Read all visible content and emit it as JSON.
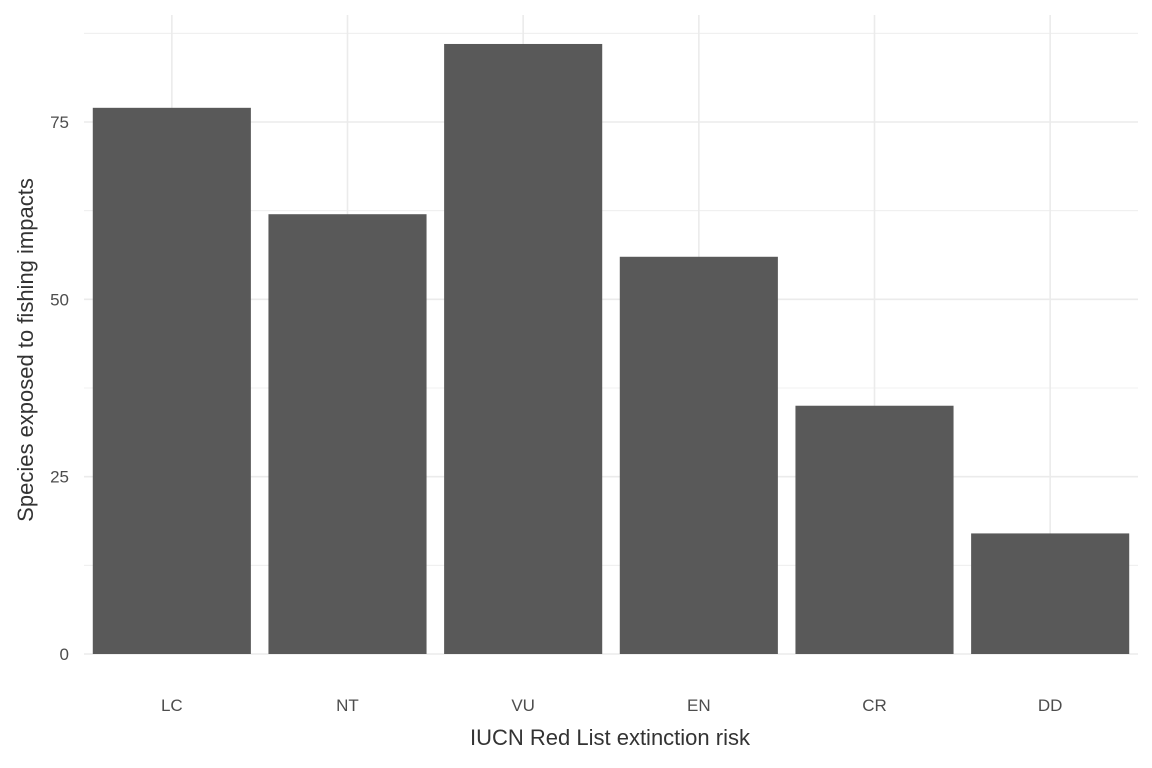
{
  "chart_data": {
    "type": "bar",
    "title": "",
    "xlabel": "IUCN Red List extinction risk",
    "ylabel": "Species exposed to fishing impacts",
    "categories": [
      "LC",
      "NT",
      "VU",
      "EN",
      "CR",
      "DD"
    ],
    "values": [
      77,
      62,
      86,
      56,
      35,
      17
    ],
    "ylim": [
      0,
      90
    ],
    "yticks": [
      0,
      25,
      50,
      75
    ],
    "grid": true,
    "bar_color": "#595959",
    "grid_color": "#ebebeb",
    "legend": "none"
  }
}
